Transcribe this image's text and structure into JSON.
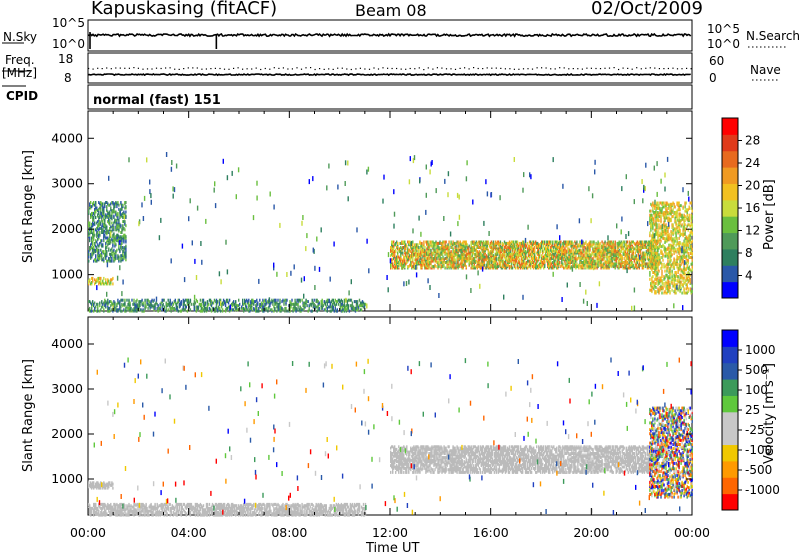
{
  "header": {
    "station": "Kapuskasing (fitACF)",
    "beam": "Beam 08",
    "date": "02/Oct/2009"
  },
  "summary": {
    "nsky_label": "N.Sky",
    "nsearch_label": "N.Search",
    "freq_label_1": "Freq.",
    "freq_label_2": "[MHz]",
    "nave_label": "Nave",
    "cpid_label": "CPID",
    "cpid_value": "normal (fast) 151",
    "left_ticks_top": [
      "10^5",
      "10^0"
    ],
    "right_ticks_top": [
      "10^5",
      "10^0"
    ],
    "left_ticks_freq": [
      "18",
      "8"
    ],
    "right_ticks_nave": [
      "60",
      "0"
    ]
  },
  "colors": {
    "power": [
      "#0000ff",
      "#2a58a8",
      "#2e7f5f",
      "#4f9a59",
      "#6abf3f",
      "#c8dc3c",
      "#f2c020",
      "#f09a22",
      "#e86a1e",
      "#e03a1a",
      "#ff0000"
    ],
    "velocity": [
      "#ff0000",
      "#ff6600",
      "#ff9a00",
      "#f0c800",
      "#c8c8c8",
      "#c8c8c8",
      "#5fc83c",
      "#3c9a5a",
      "#2a5aa8",
      "#2040c0",
      "#0000ff"
    ],
    "ground": "#bbbbbb"
  },
  "chart_data": [
    {
      "type": "heatmap",
      "name": "power",
      "ylabel": "Slant Range [km]",
      "yticks": [
        "1000",
        "2000",
        "3000",
        "4000"
      ],
      "ylim": [
        200,
        4600
      ],
      "xlim_hours": [
        0,
        24
      ],
      "colorbar_label": "Power [dB]",
      "colorbar_ticks": [
        "4",
        "8",
        "12",
        "16",
        "20",
        "24",
        "28"
      ],
      "colorbar_range": [
        0,
        30
      ],
      "regions": [
        {
          "t0": 12.0,
          "t1": 22.6,
          "r0": 1150,
          "r1": 1750,
          "level": "high"
        },
        {
          "t0": 0.0,
          "t1": 1.0,
          "r0": 800,
          "r1": 950,
          "level": "mid"
        },
        {
          "t0": 0.0,
          "t1": 1.5,
          "r0": 1300,
          "r1": 2600,
          "level": "low"
        },
        {
          "t0": 22.3,
          "t1": 24.0,
          "r0": 600,
          "r1": 2600,
          "level": "mid"
        },
        {
          "t0": 0.0,
          "t1": 11.0,
          "r0": 200,
          "r1": 450,
          "level": "low"
        }
      ]
    },
    {
      "type": "heatmap",
      "name": "velocity",
      "ylabel": "Slant Range [km]",
      "yticks": [
        "1000",
        "2000",
        "3000",
        "4000"
      ],
      "ylim": [
        200,
        4600
      ],
      "xlim_hours": [
        0,
        24
      ],
      "colorbar_label": "Velocity [m s⁻¹]",
      "colorbar_ticks": [
        "1000",
        "500",
        "100",
        "25",
        "-25",
        "-100",
        "-500",
        "-1000"
      ],
      "regions": [
        {
          "t0": 12.0,
          "t1": 22.6,
          "r0": 1150,
          "r1": 1750,
          "level": "ground"
        },
        {
          "t0": 0.0,
          "t1": 1.0,
          "r0": 800,
          "r1": 950,
          "level": "ground"
        },
        {
          "t0": 22.3,
          "t1": 24.0,
          "r0": 600,
          "r1": 2600,
          "level": "mixed"
        },
        {
          "t0": 0.0,
          "t1": 11.0,
          "r0": 200,
          "r1": 450,
          "level": "ground"
        }
      ]
    }
  ],
  "time_axis": {
    "ticks": [
      "00:00",
      "04:00",
      "08:00",
      "12:00",
      "16:00",
      "20:00",
      "00:00"
    ],
    "label": "Time UT"
  }
}
